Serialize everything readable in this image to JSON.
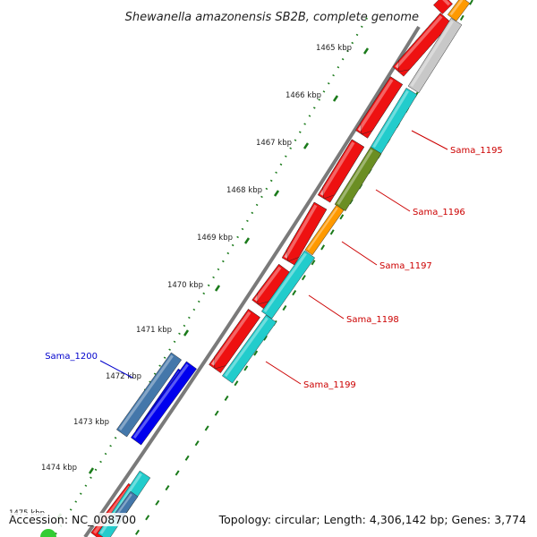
{
  "title": "Shewanella amazonensis SB2B, complete genome",
  "ticks": [
    "1465 kbp",
    "1466 kbp",
    "1467 kbp",
    "1468 kbp",
    "1469 kbp",
    "1470 kbp",
    "1471 kbp",
    "1472 kbp",
    "1473 kbp",
    "1474 kbp",
    "1475 kbp"
  ],
  "gene_labels": [
    {
      "id": "Sama_1195",
      "color": "#cc0000"
    },
    {
      "id": "Sama_1196",
      "color": "#cc0000"
    },
    {
      "id": "Sama_1197",
      "color": "#cc0000"
    },
    {
      "id": "Sama_1198",
      "color": "#cc0000"
    },
    {
      "id": "Sama_1199",
      "color": "#cc0000"
    },
    {
      "id": "Sama_1200",
      "color": "#0000cc"
    }
  ],
  "colors": {
    "cds": "#ee1111",
    "feature_cyan": "#22cccc",
    "feature_olive": "#6b8e23",
    "feature_orange": "#ff9900",
    "feature_grey": "#c8c8c8",
    "reverse_cds": "#0000ee",
    "reverse_feature": "#4477aa",
    "backbone": "#777777",
    "tick": "#1a7a1a"
  },
  "footer": {
    "accession": "Accession: NC_008700",
    "summary": "Topology: circular; Length: 4,306,142 bp; Genes: 3,774"
  }
}
